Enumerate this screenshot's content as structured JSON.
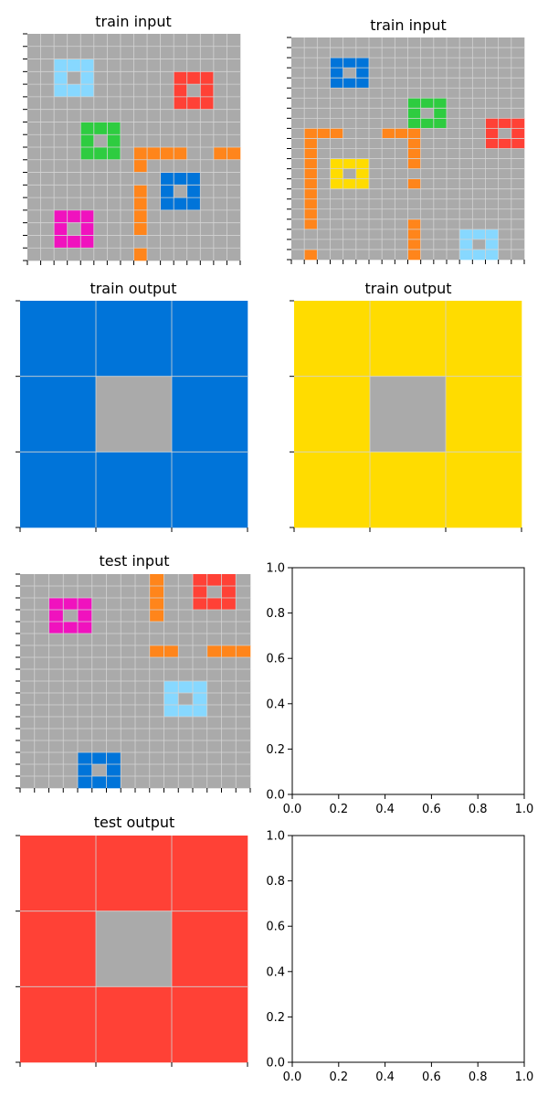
{
  "palette": {
    "0": "#000000",
    "1": "#0074D9",
    "2": "#FF4136",
    "3": "#2ECC40",
    "4": "#FFDC00",
    "5": "#AAAAAA",
    "6": "#F012BE",
    "7": "#FF851B",
    "8": "#87D8FF",
    "9": "#870C25"
  },
  "grid_line_color": "#D3D3D3",
  "panels": [
    {
      "title": "train input",
      "rows": [
        "5555555555555555",
        "5555555555555555",
        "5588855555555555",
        "5585855555522255",
        "5588855555525255",
        "5555555555522255",
        "5555555555555555",
        "5555333555555555",
        "5555353555555555",
        "5555333577775577",
        "5555555575555555",
        "5555555555111555",
        "5555555575151555",
        "5555555575111555",
        "5566655575555555",
        "5565655575555555",
        "5566655555555555",
        "5555555575555555"
      ]
    },
    {
      "title": "train input",
      "rows": [
        "555555555555555555",
        "555555555555555555",
        "555111555555555555",
        "555151555555555555",
        "555111555555555555",
        "555555555555555555",
        "555555555333555555",
        "555555555353555555",
        "555555555333555222",
        "577755577755555252",
        "575555555755555222",
        "575555555755555555",
        "575444555755555555",
        "575454555555555555",
        "575444555755555555",
        "575555555555555555",
        "575555555555555555",
        "575555555555555555",
        "575555555755555555",
        "555555555755588855",
        "555555555755585855",
        "575555555755588855"
      ]
    },
    {
      "title": "train output",
      "rows": [
        "111",
        "151",
        "111"
      ]
    },
    {
      "title": "train output",
      "rows": [
        "444",
        "454",
        "444"
      ]
    },
    {
      "title": "test input",
      "rows": [
        "5555555557552225",
        "5555555557552525",
        "5566655557552225",
        "5565655557555555",
        "5566655555555555",
        "5555555555555555",
        "5555555557755777",
        "5555555555555555",
        "5555555555555555",
        "5555555555888555",
        "5555555555858555",
        "5555555555888555",
        "5555555555555555",
        "5555555555555555",
        "5555555555555555",
        "5555111555555555",
        "5555151555555555",
        "5555111555555555"
      ]
    },
    {
      "title": "test output",
      "rows": [
        "222",
        "252",
        "222"
      ]
    }
  ],
  "empty_axes": {
    "x_ticks": [
      "0.0",
      "0.2",
      "0.4",
      "0.6",
      "0.8",
      "1.0"
    ],
    "y_ticks": [
      "0.0",
      "0.2",
      "0.4",
      "0.6",
      "0.8",
      "1.0"
    ]
  }
}
